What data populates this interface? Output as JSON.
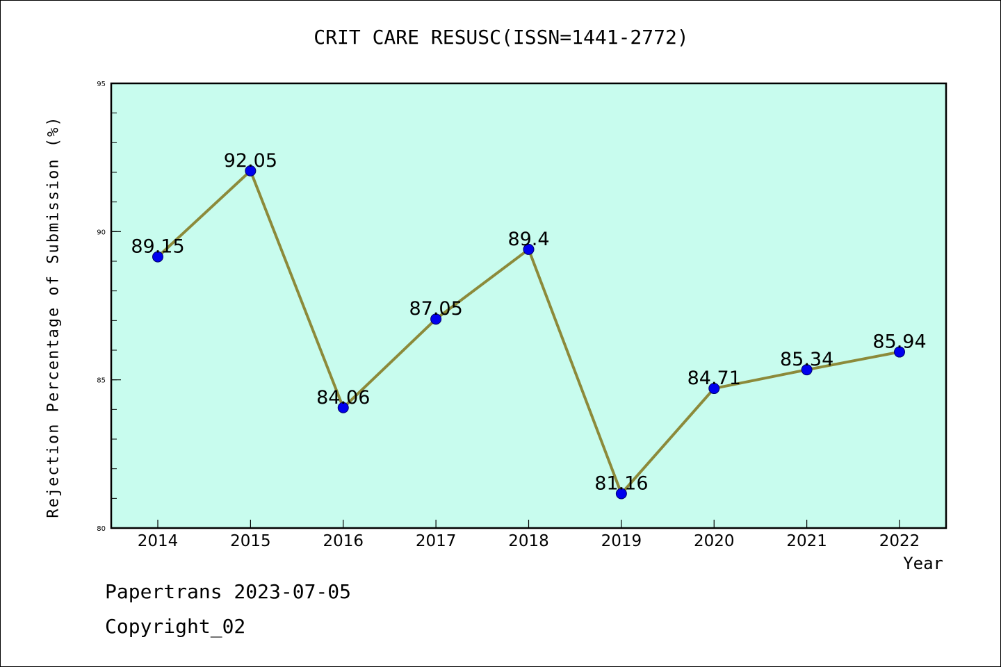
{
  "chart_data": {
    "type": "line",
    "title": "CRIT CARE RESUSC(ISSN=1441-2772)",
    "xlabel": "Year",
    "ylabel": "Rejection Percentage of Submission (%)",
    "categories": [
      "2014",
      "2015",
      "2016",
      "2017",
      "2018",
      "2019",
      "2020",
      "2021",
      "2022"
    ],
    "values": [
      89.15,
      92.05,
      84.06,
      87.05,
      89.4,
      81.16,
      84.71,
      85.34,
      85.94
    ],
    "data_labels": [
      "89.15",
      "92.05",
      "84.06",
      "87.05",
      "89.4",
      "81.16",
      "84.71",
      "85.34",
      "85.94"
    ],
    "ylim": [
      80,
      95
    ],
    "yticks": [
      80,
      85,
      90,
      95
    ],
    "yticks_minor_step": 1,
    "grid": false,
    "legend": "none",
    "colors": {
      "plot_background": "#c8fcee",
      "line": "#8c8a3a",
      "marker": "#0000ee",
      "axes": "#000000"
    }
  },
  "footer": {
    "line1": "Papertrans 2023-07-05",
    "line2": "Copyright_02"
  }
}
